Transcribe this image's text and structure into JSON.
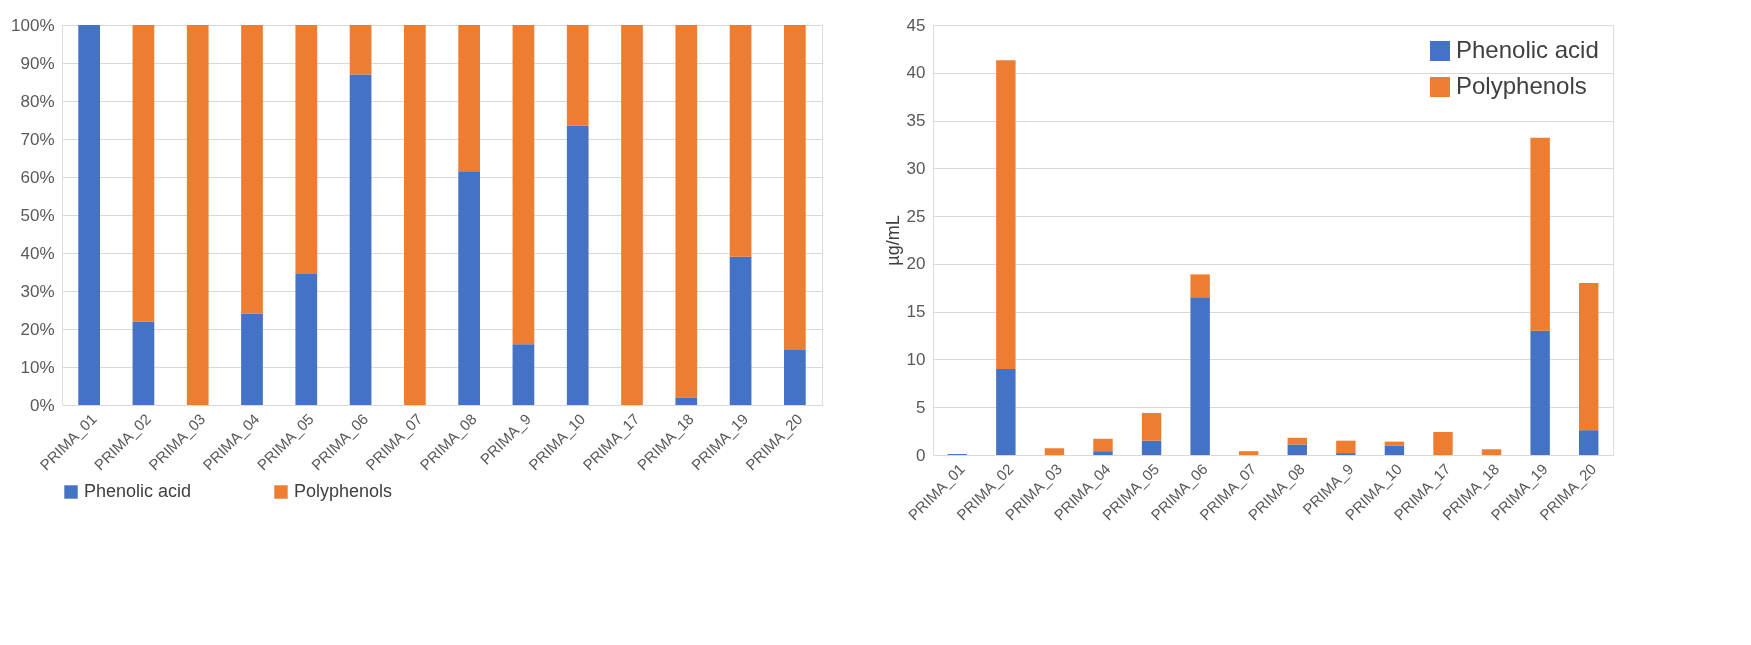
{
  "chart_data": [
    {
      "type": "bar",
      "stacked": true,
      "categories": [
        "PRIMA_01",
        "PRIMA_02",
        "PRIMA_03",
        "PRIMA_04",
        "PRIMA_05",
        "PRIMA_06",
        "PRIMA_07",
        "PRIMA_08",
        "PRIMA_9",
        "PRIMA_10",
        "PRIMA_17",
        "PRIMA_18",
        "PRIMA_19",
        "PRIMA_20"
      ],
      "series": [
        {
          "name": "Phenolic acid",
          "color": "#4472c4",
          "values": [
            100,
            22,
            0,
            24,
            34.5,
            87,
            0,
            61.5,
            16,
            73.5,
            0,
            2,
            39,
            14.5
          ]
        },
        {
          "name": "Polyphenols",
          "color": "#ed7d31",
          "values": [
            0,
            78,
            100,
            76,
            65.5,
            13,
            100,
            38.5,
            84,
            26.5,
            100,
            98,
            61,
            85.5
          ]
        }
      ],
      "ylim": [
        0,
        100
      ],
      "yticks": [
        {
          "value": 0,
          "label": "0%"
        },
        {
          "value": 10,
          "label": "10%"
        },
        {
          "value": 20,
          "label": "20%"
        },
        {
          "value": 30,
          "label": "30%"
        },
        {
          "value": 40,
          "label": "40%"
        },
        {
          "value": 50,
          "label": "50%"
        },
        {
          "value": 60,
          "label": "60%"
        },
        {
          "value": 70,
          "label": "70%"
        },
        {
          "value": 80,
          "label": "80%"
        },
        {
          "value": 90,
          "label": "90%"
        },
        {
          "value": 100,
          "label": "100%"
        }
      ],
      "grid": "y",
      "legend": "bottom"
    },
    {
      "type": "bar",
      "stacked": true,
      "ylabel": "µg/mL",
      "categories": [
        "PRIMA_01",
        "PRIMA_02",
        "PRIMA_03",
        "PRIMA_04",
        "PRIMA_05",
        "PRIMA_06",
        "PRIMA_07",
        "PRIMA_08",
        "PRIMA_9",
        "PRIMA_10",
        "PRIMA_17",
        "PRIMA_18",
        "PRIMA_19",
        "PRIMA_20"
      ],
      "series": [
        {
          "name": "Phenolic acid",
          "color": "#4472c4",
          "values": [
            0.1,
            9,
            0,
            0.4,
            1.5,
            16.5,
            0,
            1.1,
            0.2,
            1.0,
            0,
            0,
            13,
            2.6
          ]
        },
        {
          "name": "Polyphenols",
          "color": "#ed7d31",
          "values": [
            0,
            32.3,
            0.7,
            1.3,
            2.9,
            2.4,
            0.4,
            0.7,
            1.3,
            0.4,
            2.4,
            0.6,
            20.2,
            15.4
          ]
        }
      ],
      "ylim": [
        0,
        45
      ],
      "yticks": [
        0,
        5,
        10,
        15,
        20,
        25,
        30,
        35,
        40,
        45
      ],
      "grid": "y",
      "legend": "top right"
    }
  ]
}
